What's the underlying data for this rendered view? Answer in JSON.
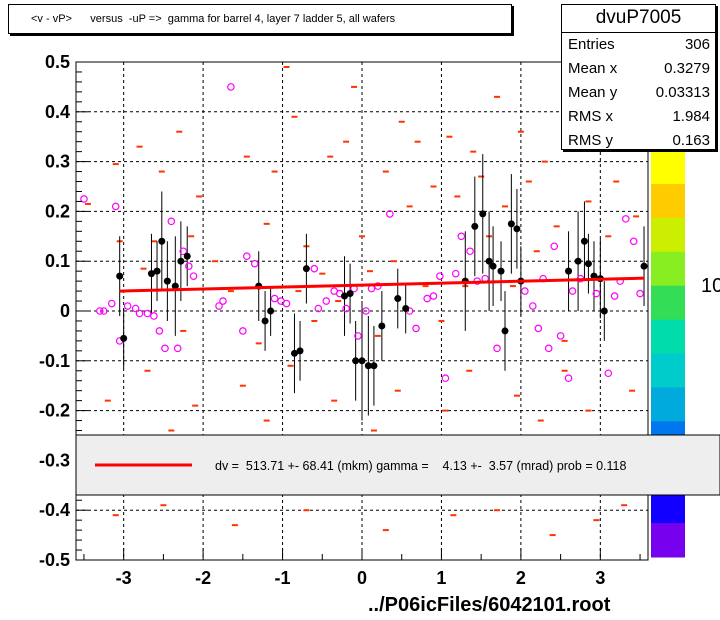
{
  "title": "<v - vP>      versus  -uP =>  gamma for barrel 4, layer 7 ladder 5, all wafers",
  "stats": {
    "name": "dvuP7005",
    "rows": [
      {
        "label": "Entries",
        "value": "306"
      },
      {
        "label": "Mean x",
        "value": "0.3279"
      },
      {
        "label": "Mean y",
        "value": "0.03313"
      },
      {
        "label": "RMS x",
        "value": "1.984"
      },
      {
        "label": "RMS y",
        "value": "0.163"
      }
    ]
  },
  "legend": {
    "text": "dv =  513.71 +- 68.41 (mkm) gamma =    4.13 +-  3.57 (mrad) prob = 0.118"
  },
  "footer": "../P06icFiles/6042101.root",
  "colors": {
    "fit_line": "#ff0000",
    "profile_points": "#000000",
    "pink_points": "#ff00ff",
    "scatter_marks": "#ff3300",
    "grid": "#000000"
  },
  "chart_data": {
    "type": "scatter",
    "xlim": [
      -3.6,
      3.6
    ],
    "ylim": [
      -0.5,
      0.5
    ],
    "x_ticks": [
      "-3",
      "-2",
      "-1",
      "0",
      "1",
      "2",
      "3"
    ],
    "y_ticks": [
      "-0.5",
      "-0.4",
      "-0.3",
      "-0.2",
      "-0.1",
      "0",
      "0.1",
      "0.2",
      "0.3",
      "0.4",
      "0.5"
    ],
    "grid": true,
    "fit_line": {
      "x": [
        -3.05,
        3.55
      ],
      "y": [
        0.04,
        0.066
      ]
    },
    "colorbar": {
      "labels": [
        "10",
        "10"
      ],
      "colors": [
        "#ffff00",
        "#ffcc00",
        "#ccee00",
        "#88ee22",
        "#33dd55",
        "#00ddaa",
        "#00cccc",
        "#00aadd",
        "#0077ee",
        "#0044ff",
        "#1100ff",
        "#7700ee"
      ]
    },
    "profile_points": [
      {
        "x": -3.05,
        "y": 0.07,
        "err": 0.08
      },
      {
        "x": -3.0,
        "y": -0.055,
        "err": 0.06
      },
      {
        "x": -2.65,
        "y": 0.075,
        "err": 0.08
      },
      {
        "x": -2.58,
        "y": 0.08,
        "err": 0.06
      },
      {
        "x": -2.52,
        "y": 0.14,
        "err": 0.1
      },
      {
        "x": -2.45,
        "y": 0.06,
        "err": 0.08
      },
      {
        "x": -2.35,
        "y": 0.05,
        "err": 0.1
      },
      {
        "x": -2.28,
        "y": 0.1,
        "err": 0.08
      },
      {
        "x": -2.2,
        "y": 0.11,
        "err": 0.06
      },
      {
        "x": -1.3,
        "y": 0.05,
        "err": 0.07
      },
      {
        "x": -1.22,
        "y": -0.02,
        "err": 0.06
      },
      {
        "x": -1.15,
        "y": 0.0,
        "err": 0.05
      },
      {
        "x": -0.85,
        "y": -0.085,
        "err": 0.08
      },
      {
        "x": -0.78,
        "y": -0.08,
        "err": 0.06
      },
      {
        "x": -0.7,
        "y": 0.085,
        "err": 0.07
      },
      {
        "x": -0.22,
        "y": 0.03,
        "err": 0.08
      },
      {
        "x": -0.15,
        "y": 0.035,
        "err": 0.06
      },
      {
        "x": -0.08,
        "y": -0.1,
        "err": 0.08
      },
      {
        "x": 0.0,
        "y": -0.1,
        "err": 0.12
      },
      {
        "x": 0.08,
        "y": -0.11,
        "err": 0.1
      },
      {
        "x": 0.15,
        "y": -0.11,
        "err": 0.08
      },
      {
        "x": 0.25,
        "y": -0.03,
        "err": 0.07
      },
      {
        "x": 0.45,
        "y": 0.025,
        "err": 0.06
      },
      {
        "x": 0.55,
        "y": 0.005,
        "err": 0.05
      },
      {
        "x": 1.3,
        "y": 0.06,
        "err": 0.1
      },
      {
        "x": 1.42,
        "y": 0.17,
        "err": 0.1
      },
      {
        "x": 1.52,
        "y": 0.195,
        "err": 0.12
      },
      {
        "x": 1.6,
        "y": 0.1,
        "err": 0.1
      },
      {
        "x": 1.65,
        "y": 0.09,
        "err": 0.08
      },
      {
        "x": 1.75,
        "y": 0.08,
        "err": 0.06
      },
      {
        "x": 1.8,
        "y": -0.04,
        "err": 0.08
      },
      {
        "x": 1.88,
        "y": 0.175,
        "err": 0.1
      },
      {
        "x": 1.95,
        "y": 0.165,
        "err": 0.08
      },
      {
        "x": 2.0,
        "y": 0.06,
        "err": 0.07
      },
      {
        "x": 2.6,
        "y": 0.08,
        "err": 0.08
      },
      {
        "x": 2.72,
        "y": 0.1,
        "err": 0.1
      },
      {
        "x": 2.8,
        "y": 0.14,
        "err": 0.08
      },
      {
        "x": 2.85,
        "y": 0.095,
        "err": 0.06
      },
      {
        "x": 2.92,
        "y": 0.07,
        "err": 0.07
      },
      {
        "x": 3.0,
        "y": 0.065,
        "err": 0.08
      },
      {
        "x": 3.05,
        "y": 0.0,
        "err": 0.06
      },
      {
        "x": 3.55,
        "y": 0.09,
        "err": 0.08
      }
    ],
    "pink_points": [
      {
        "x": -3.5,
        "y": 0.225
      },
      {
        "x": -3.3,
        "y": 0.0
      },
      {
        "x": -3.25,
        "y": 0.0
      },
      {
        "x": -3.15,
        "y": 0.015
      },
      {
        "x": -3.1,
        "y": 0.21
      },
      {
        "x": -3.05,
        "y": -0.06
      },
      {
        "x": -2.95,
        "y": 0.01
      },
      {
        "x": -2.85,
        "y": 0.005
      },
      {
        "x": -2.8,
        "y": -0.005
      },
      {
        "x": -2.7,
        "y": -0.005
      },
      {
        "x": -2.62,
        "y": -0.01
      },
      {
        "x": -2.55,
        "y": -0.04
      },
      {
        "x": -2.48,
        "y": -0.075
      },
      {
        "x": -2.4,
        "y": 0.18
      },
      {
        "x": -2.32,
        "y": -0.075
      },
      {
        "x": -2.25,
        "y": 0.12
      },
      {
        "x": -2.18,
        "y": 0.09
      },
      {
        "x": -2.12,
        "y": 0.07
      },
      {
        "x": -1.65,
        "y": 0.45
      },
      {
        "x": -1.8,
        "y": 0.01
      },
      {
        "x": -1.75,
        "y": 0.02
      },
      {
        "x": -1.5,
        "y": -0.04
      },
      {
        "x": -1.45,
        "y": 0.11
      },
      {
        "x": -1.35,
        "y": 0.095
      },
      {
        "x": -1.1,
        "y": 0.025
      },
      {
        "x": -1.02,
        "y": 0.02
      },
      {
        "x": -0.95,
        "y": 0.015
      },
      {
        "x": -0.6,
        "y": 0.085
      },
      {
        "x": -0.55,
        "y": 0.005
      },
      {
        "x": -0.45,
        "y": 0.02
      },
      {
        "x": -0.35,
        "y": 0.04
      },
      {
        "x": -0.28,
        "y": 0.035
      },
      {
        "x": -0.2,
        "y": 0.005
      },
      {
        "x": -0.1,
        "y": 0.045
      },
      {
        "x": -0.05,
        "y": -0.05
      },
      {
        "x": 0.05,
        "y": 0.0
      },
      {
        "x": 0.12,
        "y": 0.045
      },
      {
        "x": 0.2,
        "y": 0.05
      },
      {
        "x": 0.35,
        "y": 0.195
      },
      {
        "x": 0.6,
        "y": 0.0
      },
      {
        "x": 0.68,
        "y": -0.035
      },
      {
        "x": 0.82,
        "y": 0.025
      },
      {
        "x": 0.9,
        "y": 0.03
      },
      {
        "x": 0.98,
        "y": 0.07
      },
      {
        "x": 1.05,
        "y": -0.135
      },
      {
        "x": 1.18,
        "y": 0.075
      },
      {
        "x": 1.25,
        "y": 0.15
      },
      {
        "x": 1.36,
        "y": 0.12
      },
      {
        "x": 1.45,
        "y": 0.06
      },
      {
        "x": 1.55,
        "y": 0.065
      },
      {
        "x": 1.7,
        "y": -0.075
      },
      {
        "x": 2.05,
        "y": 0.04
      },
      {
        "x": 2.15,
        "y": 0.01
      },
      {
        "x": 2.22,
        "y": -0.035
      },
      {
        "x": 2.28,
        "y": 0.065
      },
      {
        "x": 2.35,
        "y": -0.075
      },
      {
        "x": 2.42,
        "y": 0.13
      },
      {
        "x": 2.5,
        "y": -0.05
      },
      {
        "x": 2.6,
        "y": -0.135
      },
      {
        "x": 2.65,
        "y": 0.04
      },
      {
        "x": 2.75,
        "y": 0.065
      },
      {
        "x": 2.95,
        "y": 0.035
      },
      {
        "x": 3.1,
        "y": -0.125
      },
      {
        "x": 3.18,
        "y": 0.03
      },
      {
        "x": 3.25,
        "y": 0.06
      },
      {
        "x": 3.32,
        "y": 0.185
      },
      {
        "x": 3.42,
        "y": 0.14
      },
      {
        "x": 3.5,
        "y": 0.035
      }
    ],
    "scatter_marks": [
      {
        "x": -3.45,
        "y": 0.215
      },
      {
        "x": -3.1,
        "y": 0.295
      },
      {
        "x": -3.05,
        "y": 0.14
      },
      {
        "x": -2.8,
        "y": 0.33
      },
      {
        "x": -2.75,
        "y": 0.085
      },
      {
        "x": -2.62,
        "y": 0.14
      },
      {
        "x": -2.52,
        "y": 0.28
      },
      {
        "x": -2.3,
        "y": 0.36
      },
      {
        "x": -2.25,
        "y": -0.04
      },
      {
        "x": -2.15,
        "y": 0.15
      },
      {
        "x": -2.05,
        "y": 0.23
      },
      {
        "x": -1.85,
        "y": 0.1
      },
      {
        "x": -1.65,
        "y": 0.04
      },
      {
        "x": -1.45,
        "y": 0.31
      },
      {
        "x": -1.3,
        "y": -0.065
      },
      {
        "x": -1.2,
        "y": 0.175
      },
      {
        "x": -1.1,
        "y": 0.28
      },
      {
        "x": -0.95,
        "y": 0.49
      },
      {
        "x": -0.85,
        "y": 0.39
      },
      {
        "x": -0.8,
        "y": 0.04
      },
      {
        "x": -0.7,
        "y": 0.13
      },
      {
        "x": -0.6,
        "y": -0.02
      },
      {
        "x": -0.5,
        "y": 0.075
      },
      {
        "x": -0.4,
        "y": 0.31
      },
      {
        "x": -0.3,
        "y": 0.02
      },
      {
        "x": -0.2,
        "y": 0.34
      },
      {
        "x": -0.1,
        "y": 0.45
      },
      {
        "x": 0.0,
        "y": 0.15
      },
      {
        "x": 0.1,
        "y": 0.08
      },
      {
        "x": 0.2,
        "y": -0.05
      },
      {
        "x": 0.3,
        "y": 0.28
      },
      {
        "x": 0.4,
        "y": 0.1
      },
      {
        "x": 0.5,
        "y": 0.38
      },
      {
        "x": 0.6,
        "y": 0.21
      },
      {
        "x": 0.7,
        "y": 0.34
      },
      {
        "x": 0.8,
        "y": 0.05
      },
      {
        "x": 0.9,
        "y": 0.25
      },
      {
        "x": 1.0,
        "y": -0.02
      },
      {
        "x": 1.1,
        "y": 0.35
      },
      {
        "x": 1.2,
        "y": 0.23
      },
      {
        "x": 1.3,
        "y": 0.05
      },
      {
        "x": 1.4,
        "y": 0.32
      },
      {
        "x": 1.5,
        "y": 0.27
      },
      {
        "x": 1.6,
        "y": 0.15
      },
      {
        "x": 1.7,
        "y": 0.43
      },
      {
        "x": 1.8,
        "y": 0.21
      },
      {
        "x": 1.9,
        "y": 0.05
      },
      {
        "x": 2.0,
        "y": 0.36
      },
      {
        "x": 2.1,
        "y": 0.26
      },
      {
        "x": 2.2,
        "y": 0.12
      },
      {
        "x": 2.3,
        "y": 0.3
      },
      {
        "x": 2.45,
        "y": 0.17
      },
      {
        "x": 2.55,
        "y": -0.06
      },
      {
        "x": 2.7,
        "y": 0.33
      },
      {
        "x": 2.85,
        "y": 0.22
      },
      {
        "x": 3.0,
        "y": 0.39
      },
      {
        "x": 3.1,
        "y": 0.15
      },
      {
        "x": 3.2,
        "y": 0.26
      },
      {
        "x": 3.3,
        "y": 0.34
      },
      {
        "x": 3.45,
        "y": 0.19
      },
      {
        "x": -3.2,
        "y": -0.18
      },
      {
        "x": -2.95,
        "y": -0.27
      },
      {
        "x": -2.7,
        "y": -0.12
      },
      {
        "x": -2.4,
        "y": -0.24
      },
      {
        "x": -2.1,
        "y": -0.19
      },
      {
        "x": -1.8,
        "y": -0.32
      },
      {
        "x": -1.5,
        "y": -0.15
      },
      {
        "x": -1.2,
        "y": -0.22
      },
      {
        "x": -0.9,
        "y": -0.11
      },
      {
        "x": -0.65,
        "y": -0.28
      },
      {
        "x": -0.35,
        "y": -0.18
      },
      {
        "x": 0.15,
        "y": -0.24
      },
      {
        "x": 0.45,
        "y": -0.16
      },
      {
        "x": 0.75,
        "y": -0.3
      },
      {
        "x": 1.05,
        "y": -0.2
      },
      {
        "x": 1.35,
        "y": -0.12
      },
      {
        "x": 1.65,
        "y": -0.26
      },
      {
        "x": 1.95,
        "y": -0.17
      },
      {
        "x": 2.25,
        "y": -0.22
      },
      {
        "x": 2.55,
        "y": -0.12
      },
      {
        "x": 2.85,
        "y": -0.2
      },
      {
        "x": 3.15,
        "y": -0.27
      },
      {
        "x": 3.4,
        "y": -0.16
      },
      {
        "x": -3.1,
        "y": -0.41
      },
      {
        "x": -2.5,
        "y": -0.39
      },
      {
        "x": -1.6,
        "y": -0.43
      },
      {
        "x": -0.7,
        "y": -0.4
      },
      {
        "x": 0.3,
        "y": -0.44
      },
      {
        "x": 1.15,
        "y": -0.41
      },
      {
        "x": 1.7,
        "y": -0.4
      },
      {
        "x": 2.4,
        "y": -0.45
      },
      {
        "x": 2.95,
        "y": -0.42
      },
      {
        "x": 3.3,
        "y": -0.39
      }
    ]
  }
}
